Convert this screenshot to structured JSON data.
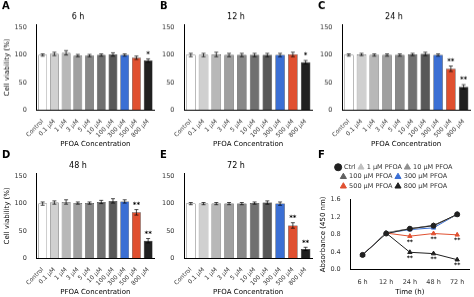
{
  "chart_data": [
    {
      "type": "bar",
      "title": "6 h",
      "annotations": [
        {
          "text": "A"
        },
        {
          "category": "800 μM",
          "text": "*"
        }
      ],
      "xlabel": "PFOA Concentration",
      "ylabel": "Cell viability (%)",
      "categories": [
        "Control",
        "0.1 μM",
        "1 μM",
        "3 μM",
        "5 μM",
        "10 μM",
        "100 μM",
        "300 μM",
        "500 μM",
        "800 μM"
      ],
      "values": [
        100,
        102,
        104,
        99,
        99,
        100,
        101,
        100,
        95,
        90
      ],
      "errors": [
        2,
        3,
        4,
        2,
        2,
        2,
        3,
        2,
        3,
        3
      ],
      "colors": [
        "white",
        "#d0d0d0",
        "#b8b8b8",
        "#a0a0a0",
        "#888888",
        "#707070",
        "#585858",
        "#3b6fd4",
        "#e05030",
        "#202020"
      ],
      "ylim": [
        0,
        155
      ],
      "yticks": [
        0,
        50,
        100,
        150
      ],
      "grid": false
    },
    {
      "type": "bar",
      "title": "12 h",
      "annotations": [
        {
          "text": "B"
        },
        {
          "category": "800 μM",
          "text": "*"
        }
      ],
      "xlabel": "PFOA Concentration",
      "categories": [
        "Control",
        "0.1 μM",
        "1 μM",
        "3 μM",
        "5 μM",
        "10 μM",
        "100 μM",
        "300 μM",
        "500 μM",
        "800 μM"
      ],
      "values": [
        100,
        100,
        101,
        100,
        100,
        100,
        100,
        100,
        101,
        87
      ],
      "errors": [
        3,
        3,
        4,
        3,
        3,
        3,
        3,
        3,
        4,
        3
      ],
      "colors": [
        "white",
        "#d0d0d0",
        "#b8b8b8",
        "#a0a0a0",
        "#888888",
        "#707070",
        "#585858",
        "#3b6fd4",
        "#e05030",
        "#202020"
      ],
      "ylim": [
        0,
        155
      ],
      "yticks": [
        0,
        50,
        100,
        150
      ],
      "grid": false
    },
    {
      "type": "bar",
      "title": "24 h",
      "annotations": [
        {
          "text": "C"
        },
        {
          "category": "500 μM",
          "text": "**"
        },
        {
          "category": "800 μM",
          "text": "**"
        }
      ],
      "xlabel": "PFOA Concentration",
      "categories": [
        "Control",
        "0.1 μM",
        "1 μM",
        "3 μM",
        "5 μM",
        "10 μM",
        "100 μM",
        "300 μM",
        "500 μM",
        "800 μM"
      ],
      "values": [
        100,
        101,
        100,
        100,
        100,
        101,
        102,
        100,
        75,
        42
      ],
      "errors": [
        2,
        2,
        2,
        2,
        2,
        2,
        3,
        2,
        5,
        4
      ],
      "colors": [
        "white",
        "#d0d0d0",
        "#b8b8b8",
        "#a0a0a0",
        "#888888",
        "#707070",
        "#585858",
        "#3b6fd4",
        "#e05030",
        "#202020"
      ],
      "ylim": [
        0,
        155
      ],
      "yticks": [
        0,
        50,
        100,
        150
      ],
      "grid": false
    },
    {
      "type": "bar",
      "title": "48 h",
      "annotations": [
        {
          "text": "D"
        },
        {
          "category": "500 μM",
          "text": "**"
        },
        {
          "category": "800 μM",
          "text": "**"
        }
      ],
      "xlabel": "PFOA Concentration",
      "ylabel": "Cell viability (%)",
      "categories": [
        "Control",
        "0.1 μM",
        "1 μM",
        "3 μM",
        "5 μM",
        "10 μM",
        "100 μM",
        "300 μM",
        "500 μM",
        "800 μM"
      ],
      "values": [
        100,
        102,
        103,
        101,
        101,
        103,
        105,
        104,
        84,
        32
      ],
      "errors": [
        3,
        3,
        4,
        2,
        2,
        3,
        4,
        3,
        5,
        4
      ],
      "colors": [
        "white",
        "#d0d0d0",
        "#b8b8b8",
        "#a0a0a0",
        "#888888",
        "#707070",
        "#585858",
        "#3b6fd4",
        "#e05030",
        "#202020"
      ],
      "ylim": [
        0,
        155
      ],
      "yticks": [
        0,
        50,
        100,
        150
      ],
      "grid": false
    },
    {
      "type": "bar",
      "title": "72 h",
      "annotations": [
        {
          "text": "E"
        },
        {
          "category": "500 μM",
          "text": "**"
        },
        {
          "category": "800 μM",
          "text": "**"
        }
      ],
      "xlabel": "PFOA Concentration",
      "categories": [
        "Control",
        "0.1 μM",
        "1 μM",
        "3 μM",
        "5 μM",
        "10 μM",
        "100 μM",
        "300 μM",
        "500 μM",
        "800 μM"
      ],
      "values": [
        100,
        100,
        100,
        100,
        100,
        101,
        102,
        100,
        60,
        17
      ],
      "errors": [
        2,
        2,
        2,
        2,
        2,
        2,
        3,
        3,
        5,
        3
      ],
      "colors": [
        "white",
        "#d0d0d0",
        "#b8b8b8",
        "#a0a0a0",
        "#888888",
        "#707070",
        "#585858",
        "#3b6fd4",
        "#e05030",
        "#202020"
      ],
      "ylim": [
        0,
        155
      ],
      "yticks": [
        0,
        50,
        100,
        150
      ],
      "grid": false
    },
    {
      "type": "line",
      "annotations": [
        {
          "text": "F"
        },
        {
          "series": "500 μM PFOA",
          "category": "24 h",
          "text": "**"
        },
        {
          "series": "500 μM PFOA",
          "category": "48 h",
          "text": "**"
        },
        {
          "series": "500 μM PFOA",
          "category": "72 h",
          "text": "**"
        },
        {
          "series": "800 μM PFOA",
          "category": "24 h",
          "text": "**"
        },
        {
          "series": "800 μM PFOA",
          "category": "48 h",
          "text": "**"
        },
        {
          "series": "800 μM PFOA",
          "category": "72 h",
          "text": "**"
        }
      ],
      "xlabel": "Time (h)",
      "ylabel": "Absorbance (450 nm)",
      "categories": [
        "6 h",
        "12 h",
        "24 h",
        "48 h",
        "72 h"
      ],
      "series": [
        {
          "name": "Ctrl",
          "color": "#202020",
          "marker": "circle",
          "line_style": "solid",
          "values": [
            0.33,
            0.82,
            0.93,
            1.0,
            1.26
          ]
        },
        {
          "name": "1 μM PFOA",
          "color": "#c0c0c0",
          "marker": "triangle",
          "line_style": "solid",
          "values": [
            0.33,
            0.83,
            0.93,
            1.0,
            1.26
          ]
        },
        {
          "name": "10 μM PFOA",
          "color": "#909090",
          "marker": "triangle",
          "line_style": "solid",
          "values": [
            0.33,
            0.83,
            0.93,
            1.0,
            1.25
          ]
        },
        {
          "name": "100 μM PFOA",
          "color": "#606060",
          "marker": "triangle",
          "line_style": "solid",
          "values": [
            0.33,
            0.84,
            0.93,
            1.01,
            1.25
          ]
        },
        {
          "name": "300 μM PFOA",
          "color": "#3b6fd4",
          "marker": "triangle",
          "line_style": "solid",
          "values": [
            0.33,
            0.83,
            0.91,
            0.95,
            1.26
          ]
        },
        {
          "name": "500 μM PFOA",
          "color": "#e05030",
          "marker": "triangle",
          "line_style": "solid",
          "values": [
            0.33,
            0.83,
            0.76,
            0.82,
            0.79
          ]
        },
        {
          "name": "800 μM PFOA",
          "color": "#202020",
          "marker": "triangle",
          "line_style": "solid",
          "values": [
            0.33,
            0.83,
            0.39,
            0.36,
            0.22
          ]
        }
      ],
      "ylim": [
        0,
        1.6
      ],
      "yticks": [
        {
          "value": 0,
          "label": "0.0"
        },
        0.4,
        0.8,
        1.2,
        1.6
      ],
      "grid": false,
      "legend": "top"
    }
  ]
}
